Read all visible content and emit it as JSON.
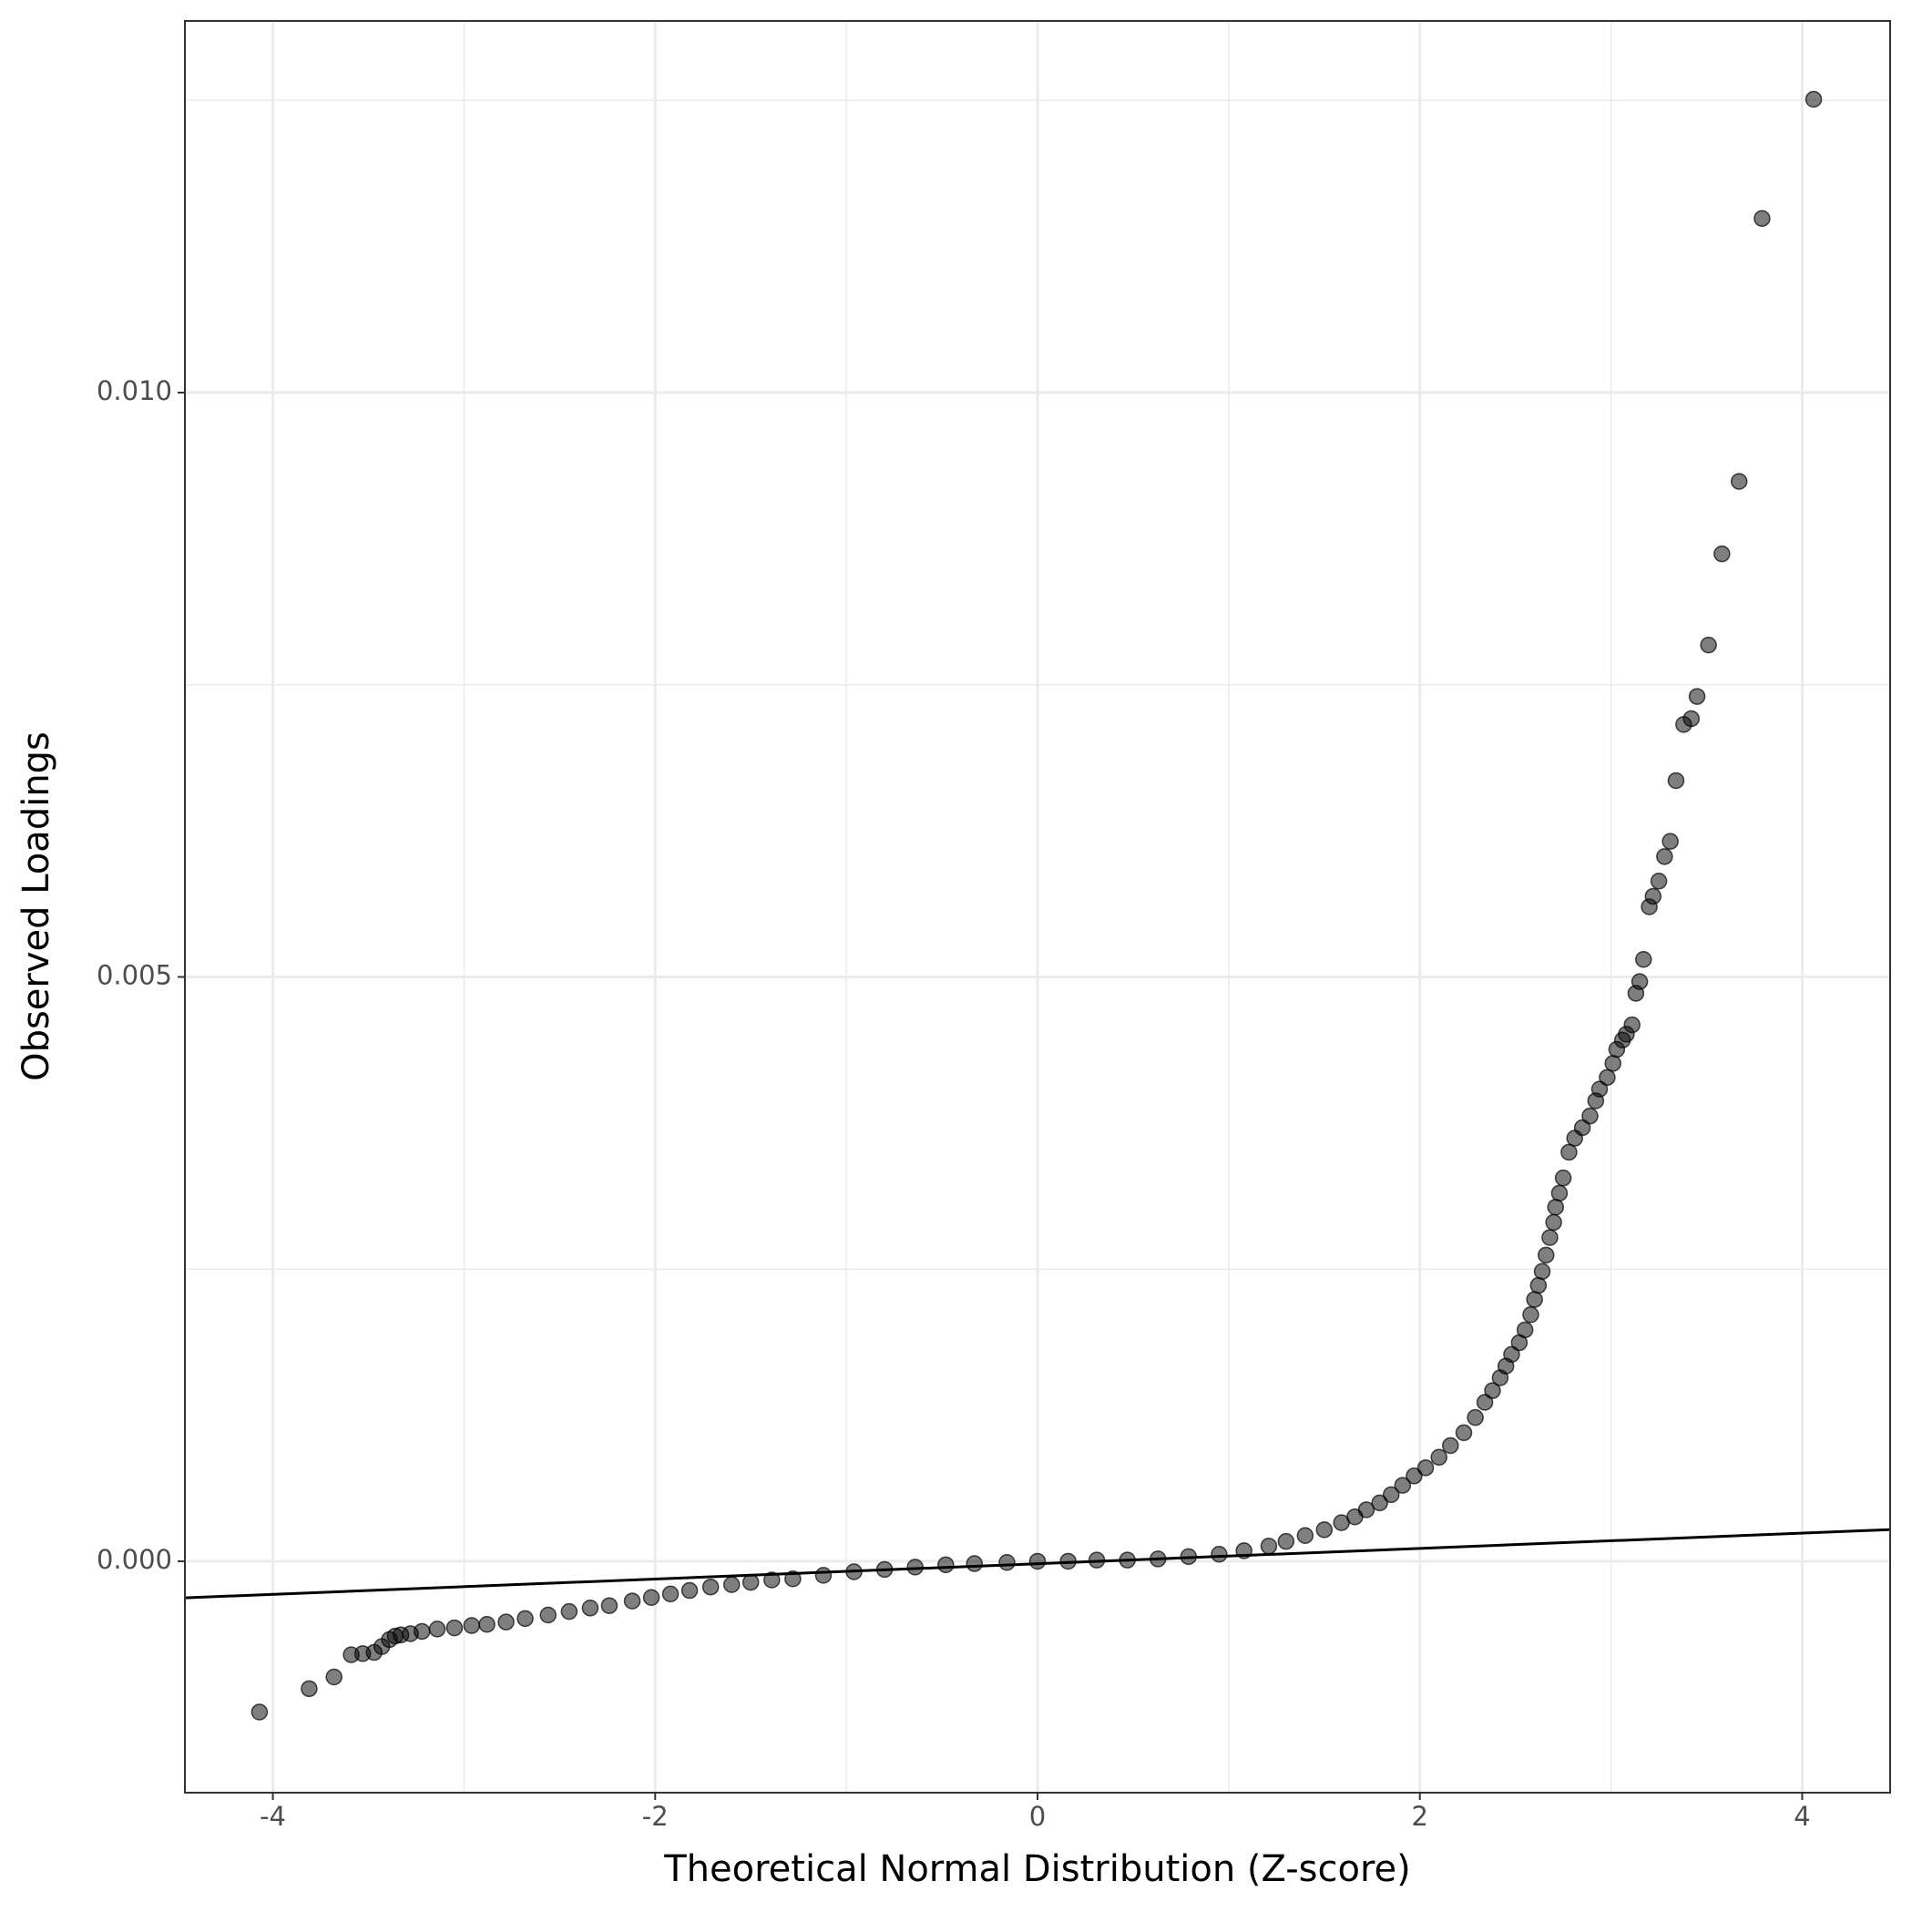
{
  "chart_data": {
    "type": "scatter",
    "x_label": "Theoretical Normal Distribution (Z-score)",
    "y_label": "Observed Loadings",
    "xlim": [
      -4.46,
      4.46
    ],
    "ylim": [
      -0.00198,
      0.01318
    ],
    "xticks": [
      -4,
      -2,
      0,
      2,
      4
    ],
    "yticks": [
      {
        "value": 0,
        "label": "0.000"
      },
      {
        "value": 0.005,
        "label": "0.005"
      },
      {
        "value": 0.01,
        "label": "0.010"
      }
    ],
    "x_minor_grid": [
      -3,
      -1,
      1,
      3
    ],
    "y_minor_grid": [
      0.0025,
      0.0075,
      0.0125
    ],
    "grid": true,
    "color": "#000000",
    "x": [
      -4.07,
      -3.81,
      -3.68,
      -3.59,
      -3.53,
      -3.47,
      -3.43,
      -3.39,
      -3.36,
      -3.33,
      -3.28,
      -3.22,
      -3.14,
      -3.05,
      -2.96,
      -2.88,
      -2.78,
      -2.68,
      -2.56,
      -2.45,
      -2.34,
      -2.24,
      -2.12,
      -2.02,
      -1.92,
      -1.82,
      -1.71,
      -1.6,
      -1.5,
      -1.39,
      -1.28,
      -1.12,
      -0.96,
      -0.8,
      -0.64,
      -0.48,
      -0.33,
      -0.16,
      0,
      0.16,
      0.31,
      0.47,
      0.63,
      0.79,
      0.95,
      1.08,
      1.21,
      1.3,
      1.4,
      1.5,
      1.59,
      1.66,
      1.72,
      1.79,
      1.85,
      1.91,
      1.97,
      2.03,
      2.1,
      2.16,
      2.23,
      2.29,
      2.34,
      2.38,
      2.42,
      2.45,
      2.48,
      2.52,
      2.55,
      2.58,
      2.6,
      2.62,
      2.64,
      2.66,
      2.68,
      2.7,
      2.71,
      2.73,
      2.75,
      2.78,
      2.81,
      2.85,
      2.89,
      2.92,
      2.94,
      2.98,
      3.01,
      3.03,
      3.06,
      3.08,
      3.11,
      3.13,
      3.15,
      3.17,
      3.2,
      3.22,
      3.25,
      3.28,
      3.31,
      3.34,
      3.38,
      3.42,
      3.45,
      3.51,
      3.58,
      3.67,
      3.79,
      4.06
    ],
    "values": [
      -0.00129,
      -0.00109,
      -0.00099,
      -0.0008,
      -0.00079,
      -0.00078,
      -0.00073,
      -0.00067,
      -0.00064,
      -0.00063,
      -0.00062,
      -0.0006,
      -0.00058,
      -0.00057,
      -0.00055,
      -0.00054,
      -0.00052,
      -0.00049,
      -0.00046,
      -0.00043,
      -0.0004,
      -0.00038,
      -0.00034,
      -0.00031,
      -0.00028,
      -0.00025,
      -0.00022,
      -0.0002,
      -0.00018,
      -0.00016,
      -0.00015,
      -0.00012,
      -9e-05,
      -7e-05,
      -5e-05,
      -3e-05,
      -2e-05,
      -1e-05,
      0,
      0,
      1e-05,
      1e-05,
      2e-05,
      4e-05,
      6e-05,
      9e-05,
      0.00013,
      0.00017,
      0.00022,
      0.00027,
      0.00033,
      0.00038,
      0.00044,
      0.0005,
      0.00057,
      0.00065,
      0.00073,
      0.0008,
      0.00089,
      0.00099,
      0.0011,
      0.00123,
      0.00136,
      0.00146,
      0.00157,
      0.00167,
      0.00177,
      0.00187,
      0.00198,
      0.00211,
      0.00224,
      0.00236,
      0.00248,
      0.00262,
      0.00277,
      0.0029,
      0.00303,
      0.00315,
      0.00328,
      0.0035,
      0.00362,
      0.00371,
      0.00381,
      0.00394,
      0.00404,
      0.00414,
      0.00426,
      0.00438,
      0.00446,
      0.00451,
      0.00459,
      0.00486,
      0.00496,
      0.00515,
      0.0056,
      0.00569,
      0.00582,
      0.00603,
      0.00616,
      0.00668,
      0.00716,
      0.00721,
      0.0074,
      0.00784,
      0.00862,
      0.00924,
      0.01149,
      0.01251
    ],
    "ref_line": {
      "x": [
        -4.46,
        4.46
      ],
      "y": [
        -0.000313,
        0.000271
      ],
      "color": "#000000"
    }
  }
}
